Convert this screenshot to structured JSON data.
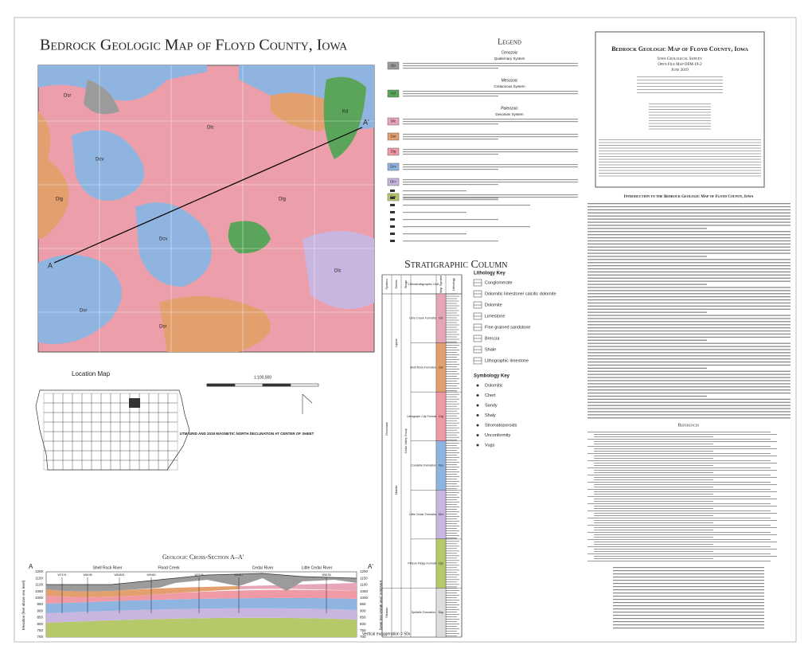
{
  "header": {
    "title": "Bedrock Geologic Map of Floyd County, Iowa"
  },
  "map": {
    "section_start": "A",
    "section_end": "A'",
    "unit_labels": [
      "Dsr",
      "Dlg",
      "Dcv",
      "Dlc",
      "Dsr",
      "Dcv",
      "Dlg",
      "Kd",
      "Dlc",
      "Dsr"
    ]
  },
  "legend": {
    "title": "Legend",
    "groups": [
      "Cenozoic",
      "Quaternary System",
      "Mesozoic",
      "Cretaceous System",
      "Paleozoic",
      "Devonian System"
    ],
    "units": [
      {
        "symbol": "Qu",
        "color": "#9b9b9b"
      },
      {
        "symbol": "Kd",
        "color": "#5aa55a"
      },
      {
        "symbol": "Dlc",
        "color": "#e7a6b8"
      },
      {
        "symbol": "Dsr",
        "color": "#e3a06e"
      },
      {
        "symbol": "Dlg",
        "color": "#f09aa6"
      },
      {
        "symbol": "Dcv",
        "color": "#8fb4e0"
      },
      {
        "symbol": "Dlcr",
        "color": "#c9b6e0"
      },
      {
        "symbol": "Dpr",
        "color": "#b5c96a"
      }
    ]
  },
  "sidebar": {
    "title": "Bedrock Geologic Map of Floyd County, Iowa",
    "agency": "Iowa Geological Survey",
    "series": "Open File Map OFM-19-2",
    "date": "June 2019"
  },
  "stratigraphic_column": {
    "title": "Stratigraphic Column",
    "headers": [
      "System",
      "Series",
      "Stage",
      "Lithostratigraphic Unit",
      "Map Symbol",
      "Lithology"
    ],
    "systems": [
      "Devonian",
      "Silurian"
    ],
    "series": [
      "Upper",
      "Middle"
    ],
    "units": [
      {
        "name": "Lime Creek Formation",
        "symbol": "Dlc"
      },
      {
        "name": "Shell Rock Formation",
        "symbol": "Dsr"
      },
      {
        "name": "Lithograph City Formation",
        "symbol": "Dlg"
      },
      {
        "name": "Coralville Formation",
        "symbol": "Dcv"
      },
      {
        "name": "Little Cedar Formation",
        "symbol": "Dlcr"
      },
      {
        "name": "Pinicon Ridge Formation",
        "symbol": "Dpr"
      },
      {
        "name": "Spillville Formation",
        "symbol": "Dsp"
      }
    ],
    "group": "Cedar Valley Group",
    "lithology_key": {
      "title": "Lithology Key",
      "items": [
        "Conglomerate",
        "Dolomitic limestone/ calcitic dolomite",
        "Dolomite",
        "Limestone",
        "Fine grained sandstone",
        "Breccia",
        "Shale",
        "Lithographic limestone"
      ]
    },
    "symbology_key": {
      "title": "Symbology Key",
      "items": [
        "Dolomitic",
        "Chert",
        "Sandy",
        "Shaly",
        "Stromatoporoids",
        "Unconformity",
        "Vugs"
      ]
    }
  },
  "location_map": {
    "title": "Location Map",
    "scale": "1:100,000",
    "declination_note": "UTM GRID AND 2019 MAGNETIC NORTH DECLINATION AT CENTER OF SHEET"
  },
  "cross_section": {
    "title": "Geologic Cross-Section A–A'",
    "start": "A",
    "end": "A'",
    "rivers": [
      "Shell Rock River",
      "Flood Creek",
      "Cedar River",
      "Little Cedar River"
    ],
    "wells": [
      "W7191",
      "W6198",
      "W54824",
      "W5460",
      "W7193",
      "W1817",
      "W6136"
    ],
    "elevations": [
      1200,
      1150,
      1100,
      1050,
      1000,
      950,
      900,
      850,
      800,
      750,
      700
    ],
    "axis_label": "Elevation (feet above sea level)",
    "exaggeration": "Vertical exaggeration = 50x"
  },
  "text": {
    "intro_title": "Introduction to the Bedrock Geologic Map of Floyd County, Iowa",
    "references_title": "References"
  }
}
